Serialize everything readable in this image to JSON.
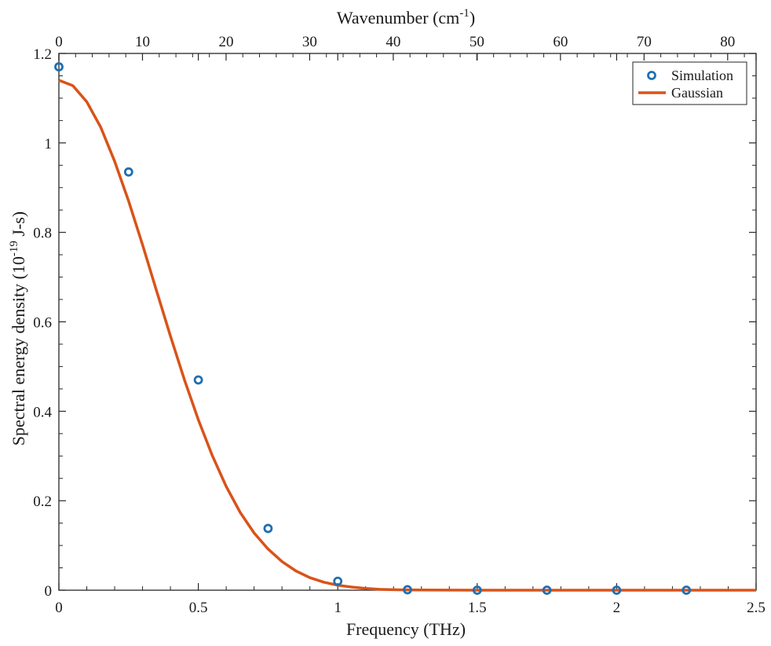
{
  "chart_data": {
    "type": "scatter+line",
    "title": "",
    "xlabel": "Frequency (THz)",
    "x2label": {
      "base": "Wavenumber (cm",
      "sup": "-1",
      "tail": ")"
    },
    "ylabel": {
      "base": "Spectral energy density (10",
      "sup": "-19",
      "tail": " J-s)"
    },
    "xlim": [
      0,
      2.5
    ],
    "ylim": [
      0,
      1.2
    ],
    "x2lim": [
      0,
      83.4
    ],
    "xticks": [
      0,
      0.5,
      1,
      1.5,
      2,
      2.5
    ],
    "xtick_labels": [
      "0",
      "0.5",
      "1",
      "1.5",
      "2",
      "2.5"
    ],
    "x2ticks": [
      0,
      10,
      20,
      30,
      40,
      50,
      60,
      70,
      80
    ],
    "x2tick_labels": [
      "0",
      "10",
      "20",
      "30",
      "40",
      "50",
      "60",
      "70",
      "80"
    ],
    "yticks": [
      0,
      0.2,
      0.4,
      0.6,
      0.8,
      1,
      1.2
    ],
    "ytick_labels": [
      "0",
      "0.2",
      "0.4",
      "0.6",
      "0.8",
      "1",
      "1.2"
    ],
    "legend_position": "top-right",
    "grid": false,
    "series": [
      {
        "name": "Simulation",
        "kind": "scatter",
        "marker": "open-circle",
        "color": "#1f6fb0",
        "x": [
          0.0,
          0.25,
          0.5,
          0.75,
          1.0,
          1.25,
          1.5,
          1.75,
          2.0,
          2.25
        ],
        "y": [
          1.17,
          0.935,
          0.47,
          0.138,
          0.02,
          0.001,
          0.0,
          0.0,
          0.0,
          0.0
        ]
      },
      {
        "name": "Gaussian",
        "kind": "line",
        "color": "#d95319",
        "x": [
          0.0,
          0.05,
          0.1,
          0.15,
          0.2,
          0.25,
          0.3,
          0.35,
          0.4,
          0.45,
          0.5,
          0.55,
          0.6,
          0.65,
          0.7,
          0.75,
          0.8,
          0.85,
          0.9,
          0.95,
          1.0,
          1.05,
          1.1,
          1.15,
          1.2,
          1.25,
          1.3,
          1.4,
          1.5,
          1.75,
          2.0,
          2.25,
          2.5
        ],
        "y": [
          1.14,
          1.128,
          1.092,
          1.035,
          0.959,
          0.87,
          0.772,
          0.67,
          0.568,
          0.471,
          0.381,
          0.301,
          0.232,
          0.174,
          0.128,
          0.092,
          0.064,
          0.043,
          0.028,
          0.018,
          0.011,
          0.007,
          0.004,
          0.002,
          0.001,
          0.0007,
          0.0004,
          0.0001,
          0.0,
          0.0,
          0.0,
          0.0,
          0.0
        ]
      }
    ]
  }
}
